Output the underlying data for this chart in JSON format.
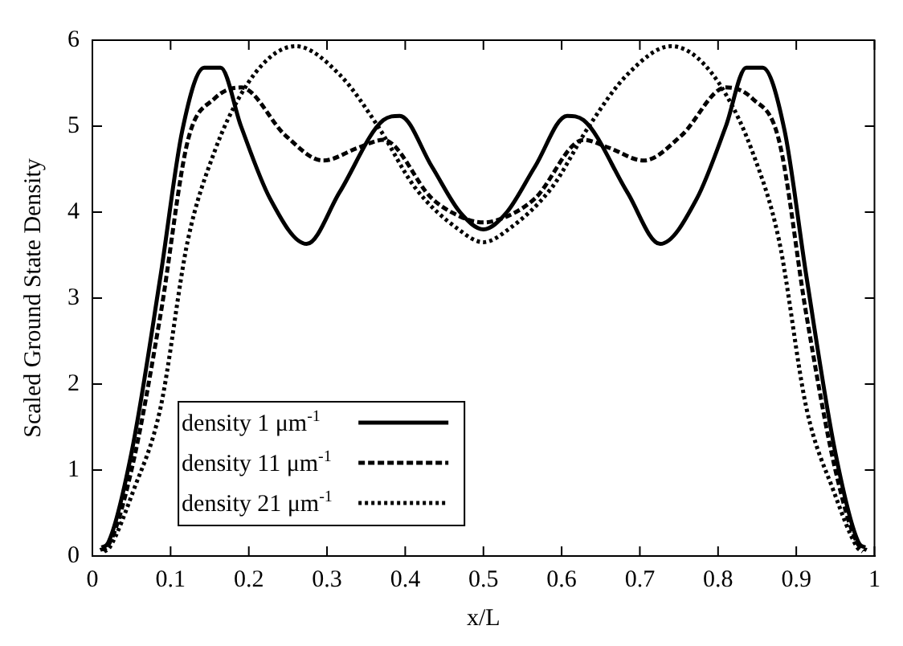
{
  "chart_data": {
    "type": "line",
    "xlabel": "x/L",
    "ylabel": "Scaled Ground State Density",
    "xlim": [
      0,
      1
    ],
    "ylim": [
      0,
      6
    ],
    "xticks": [
      0,
      0.1,
      0.2,
      0.3,
      0.4,
      0.5,
      0.6,
      0.7,
      0.8,
      0.9,
      1
    ],
    "yticks": [
      0,
      1,
      2,
      3,
      4,
      5,
      6
    ],
    "legend": "bottom",
    "marker": "none",
    "series": [
      {
        "name": "density 1 μm$^{-1}$",
        "color": "#000000",
        "line_style": "solid",
        "x": [
          0.012,
          0.02,
          0.05,
          0.087,
          0.115,
          0.143,
          0.164,
          0.19,
          0.227,
          0.274,
          0.316,
          0.372,
          0.393,
          0.434,
          0.47,
          0.5,
          0.53,
          0.566,
          0.607,
          0.628,
          0.684,
          0.726,
          0.773,
          0.81,
          0.836,
          0.857,
          0.885,
          0.913,
          0.95,
          0.98,
          0.988
        ],
        "values": [
          0.1,
          0.15,
          1.2,
          3.25,
          4.95,
          5.68,
          5.68,
          5.0,
          4.16,
          3.63,
          4.23,
          5.07,
          5.12,
          4.53,
          4.0,
          3.8,
          4.0,
          4.53,
          5.12,
          5.07,
          4.23,
          3.63,
          4.16,
          5.0,
          5.68,
          5.68,
          4.95,
          3.25,
          1.2,
          0.15,
          0.1
        ]
      },
      {
        "name": "density 11 μm$^{-1}$",
        "color": "#000000",
        "line_style": "dashed",
        "x": [
          0.01,
          0.02,
          0.05,
          0.087,
          0.122,
          0.156,
          0.19,
          0.247,
          0.295,
          0.34,
          0.372,
          0.434,
          0.47,
          0.5,
          0.53,
          0.566,
          0.628,
          0.66,
          0.705,
          0.753,
          0.81,
          0.844,
          0.878,
          0.913,
          0.95,
          0.98,
          0.99
        ],
        "values": [
          0.07,
          0.12,
          1.0,
          2.8,
          4.83,
          5.32,
          5.45,
          4.89,
          4.6,
          4.75,
          4.84,
          4.16,
          3.95,
          3.88,
          3.95,
          4.16,
          4.84,
          4.75,
          4.6,
          4.89,
          5.45,
          5.32,
          4.83,
          2.8,
          1.0,
          0.12,
          0.07
        ]
      },
      {
        "name": "density 21 μm$^{-1}$",
        "color": "#000000",
        "line_style": "dotted",
        "x": [
          0.015,
          0.022,
          0.052,
          0.087,
          0.122,
          0.156,
          0.19,
          0.227,
          0.26,
          0.316,
          0.365,
          0.413,
          0.468,
          0.5,
          0.532,
          0.587,
          0.635,
          0.684,
          0.74,
          0.773,
          0.81,
          0.844,
          0.878,
          0.913,
          0.948,
          0.978,
          0.985
        ],
        "values": [
          0.05,
          0.1,
          0.75,
          1.72,
          3.67,
          4.7,
          5.37,
          5.8,
          5.93,
          5.6,
          5.0,
          4.28,
          3.8,
          3.65,
          3.8,
          4.28,
          5.0,
          5.6,
          5.93,
          5.8,
          5.37,
          4.7,
          3.67,
          1.72,
          0.75,
          0.1,
          0.05
        ]
      }
    ]
  }
}
